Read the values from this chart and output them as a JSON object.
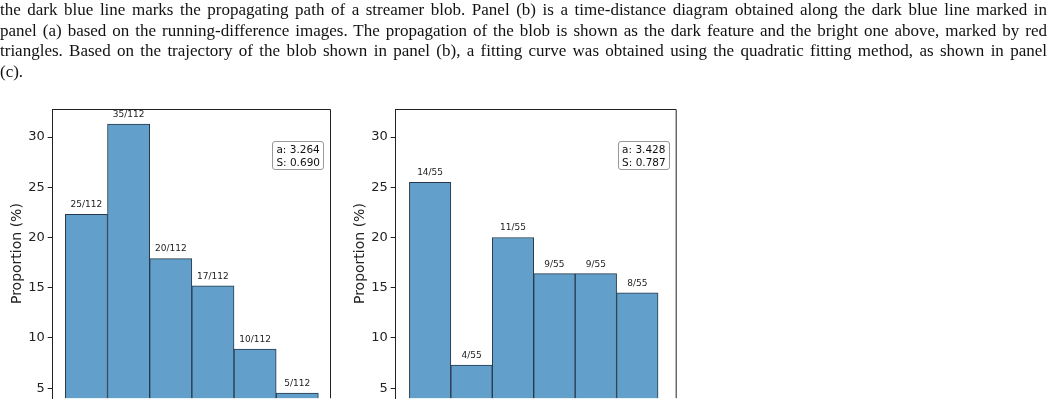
{
  "chart_data": [
    {
      "type": "other",
      "annotations": [
        "the dark blue line marks the propagating path of a streamer blob. Panel (b) is a time-distance diagram obtained along the dark blue line marked in panel (a) based on the running-difference images. The propagation of the blob is shown as the dark feature and the bright one above, marked by red triangles. Based on the trajectory of the blob shown in panel (b), a fitting curve was obtained using the quadratic fitting method, as shown in panel (c)."
      ]
    },
    {
      "type": "bar",
      "categories": [
        null,
        null,
        null,
        null,
        null,
        null
      ],
      "values": [
        22.3,
        31.3,
        17.9,
        15.2,
        8.9,
        4.5
      ],
      "value_labels": [
        "25/112",
        "35/112",
        "20/112",
        "17/112",
        "10/112",
        "5/112"
      ],
      "color": "#62a0cb",
      "ylabel": "Proportion (%)",
      "ylim": [
        4,
        32.8
      ],
      "yticks": [
        5,
        10,
        15,
        20,
        25,
        30
      ],
      "tick_labels": "y",
      "annotations": [
        "a: 3.264\nS: 0.690"
      ]
    },
    {
      "type": "bar",
      "categories": [
        null,
        null,
        null,
        null,
        null,
        null
      ],
      "values": [
        25.5,
        7.3,
        20.0,
        16.4,
        16.4,
        14.5
      ],
      "value_labels": [
        "14/55",
        "4/55",
        "11/55",
        "9/55",
        "9/55",
        "8/55"
      ],
      "color": "#62a0cb",
      "ylabel": "Proportion (%)",
      "ylim": [
        4,
        32.8
      ],
      "yticks": [
        5,
        10,
        15,
        20,
        25,
        30
      ],
      "tick_labels": "y",
      "annotations": [
        "a: 3.428\nS: 0.787"
      ]
    }
  ]
}
